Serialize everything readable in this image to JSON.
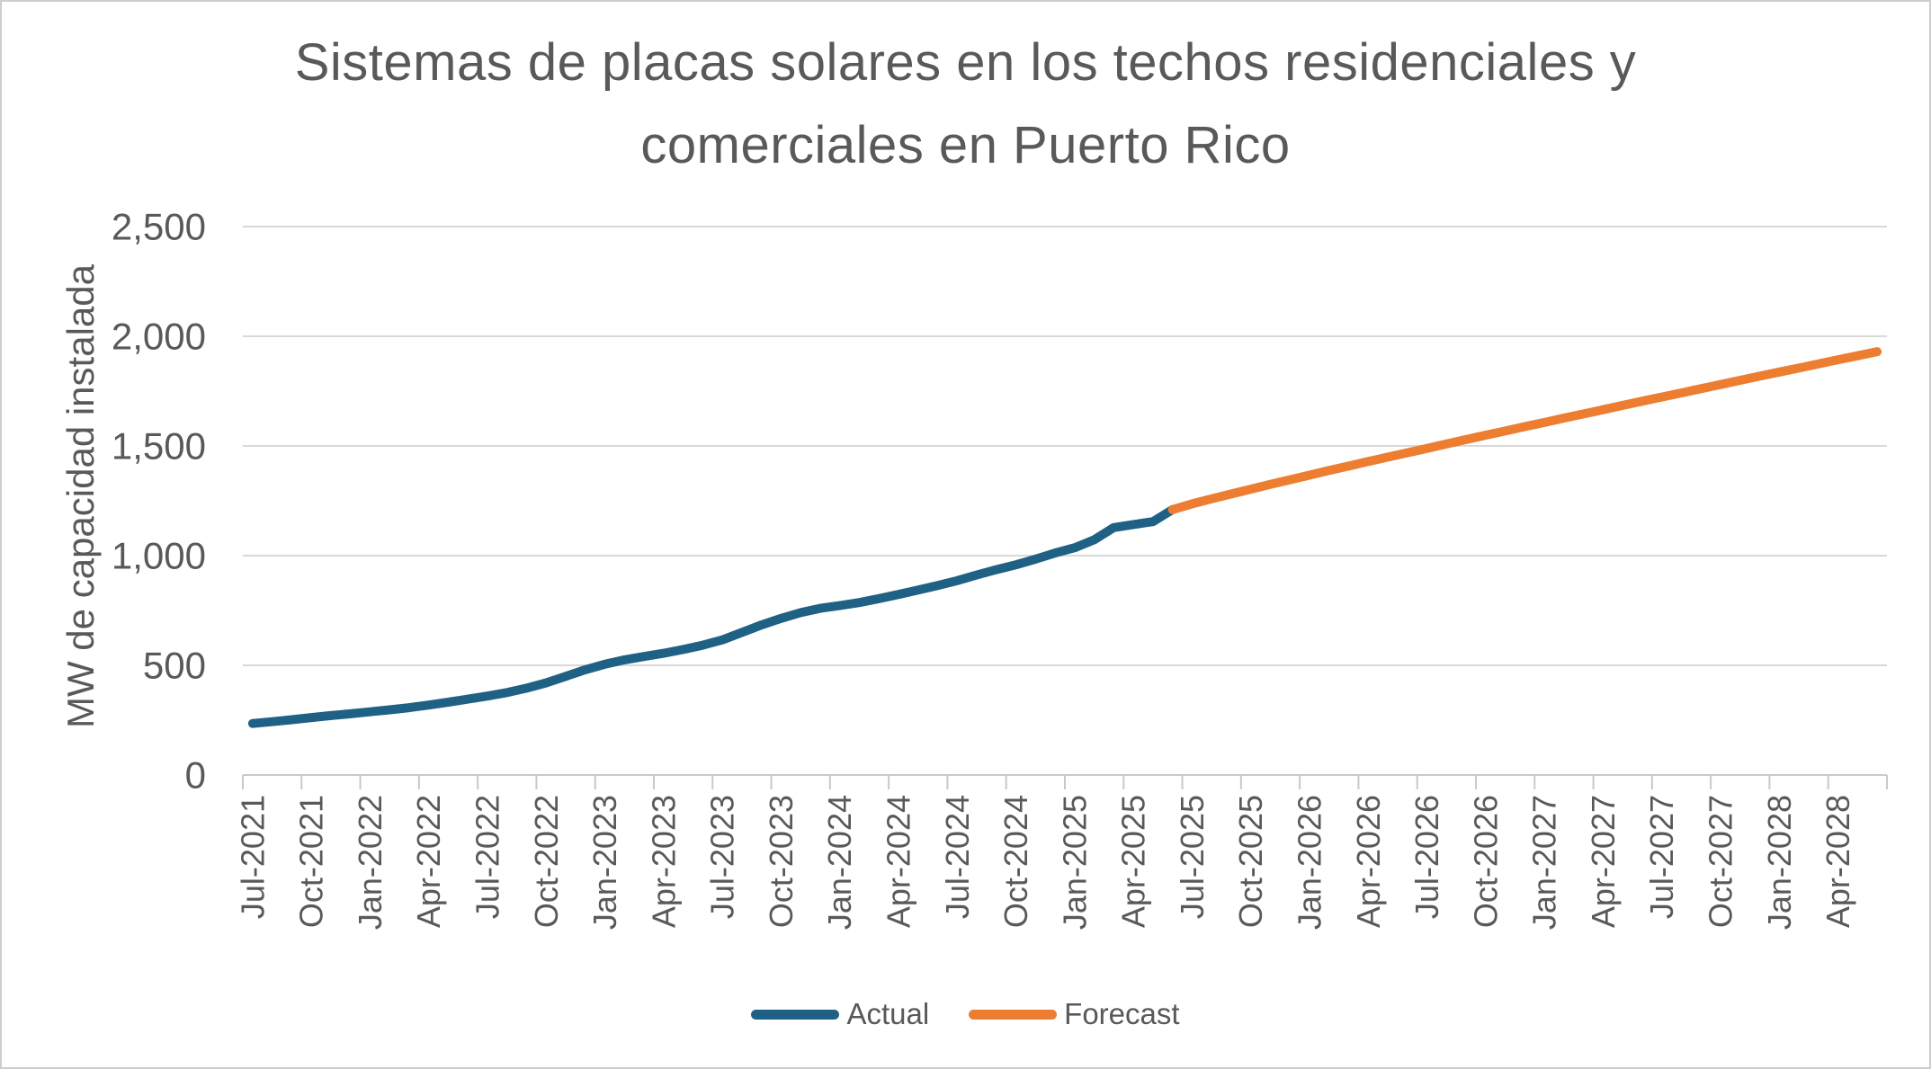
{
  "chart_data": {
    "type": "line",
    "title": "Sistemas de placas solares en los techos residenciales y comerciales en Puerto Rico",
    "title_lines": [
      "Sistemas de placas solares en los techos residenciales y",
      "comerciales en Puerto Rico"
    ],
    "xlabel": "",
    "ylabel": "MW de capacidad instalada",
    "ylim": [
      0,
      2500
    ],
    "y_tick_labels": [
      "0",
      "500",
      "1,000",
      "1,500",
      "2,000",
      "2,500"
    ],
    "x_tick_labels": [
      "Jul-2021",
      "Oct-2021",
      "Jan-2022",
      "Apr-2022",
      "Jul-2022",
      "Oct-2022",
      "Jan-2023",
      "Apr-2023",
      "Jul-2023",
      "Oct-2023",
      "Jan-2024",
      "Apr-2024",
      "Jul-2024",
      "Oct-2024",
      "Jan-2025",
      "Apr-2025",
      "Jul-2025",
      "Oct-2025",
      "Jan-2026",
      "Apr-2026",
      "Jul-2026",
      "Oct-2026",
      "Jan-2027",
      "Apr-2027",
      "Jul-2027",
      "Oct-2027",
      "Jan-2028",
      "Apr-2028"
    ],
    "months_per_label": 3,
    "x_months_total": 84,
    "grid": "horizontal",
    "legend_position": "bottom",
    "axis_text_color": "#595959",
    "gridline_color": "#d9d9d9",
    "axis_line_color": "#c9c9c9",
    "series": [
      {
        "name": "Actual",
        "color": "#1f6185",
        "start_month_index": 0,
        "x_start": "Jul-2021",
        "x_end": "Jun-2025",
        "values": [
          235,
          243,
          252,
          262,
          271,
          279,
          288,
          297,
          307,
          319,
          332,
          346,
          360,
          376,
          396,
          420,
          450,
          480,
          505,
          525,
          540,
          555,
          572,
          592,
          616,
          650,
          684,
          714,
          740,
          760,
          772,
          786,
          804,
          823,
          843,
          864,
          886,
          912,
          936,
          958,
          984,
          1012,
          1036,
          1072,
          1128,
          1142,
          1155,
          1210
        ]
      },
      {
        "name": "Forecast",
        "color": "#ed7d31",
        "start_month_index": 47,
        "x_start": "Jun-2025",
        "x_end": "Jun-2028",
        "values": [
          1210,
          1236,
          1259,
          1281,
          1303,
          1325,
          1346,
          1367,
          1388,
          1408,
          1429,
          1449,
          1469,
          1489,
          1509,
          1529,
          1549,
          1568,
          1588,
          1607,
          1627,
          1646,
          1665,
          1685,
          1704,
          1723,
          1742,
          1761,
          1780,
          1799,
          1818,
          1837,
          1855,
          1874,
          1893,
          1911,
          1930
        ]
      }
    ]
  }
}
